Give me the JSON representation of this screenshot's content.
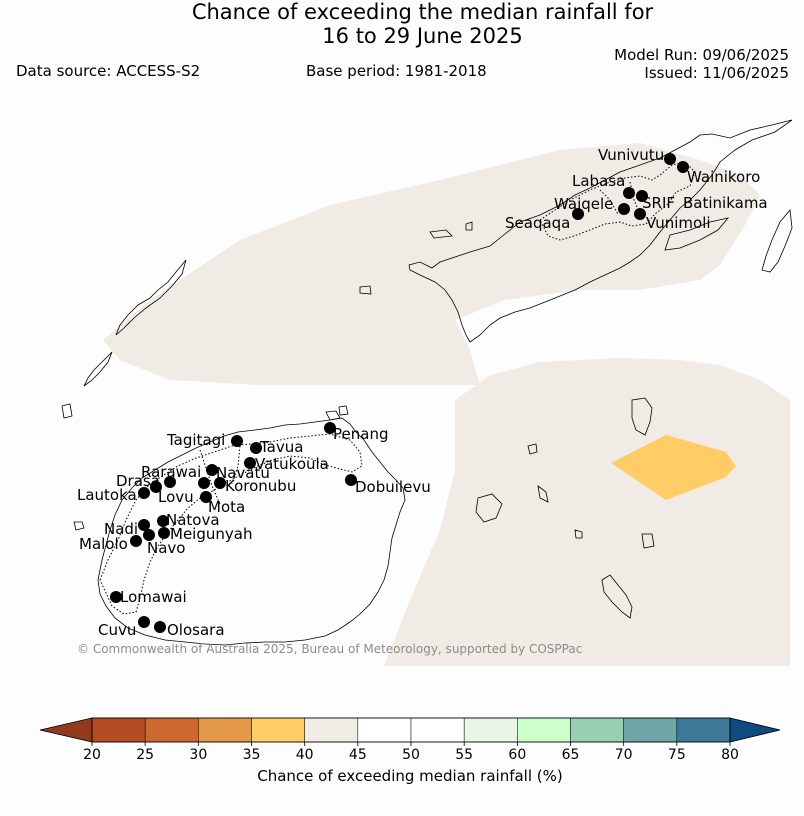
{
  "header": {
    "title_line1": "Chance of exceeding the median rainfall for",
    "title_line2": "16 to 29 June 2025",
    "data_source": "Data source: ACCESS-S2",
    "base_period": "Base period: 1981-2018",
    "model_run": "Model Run: 09/06/2025",
    "issued": "Issued: 11/06/2025"
  },
  "stations": [
    {
      "name": "Vunivutu"
    },
    {
      "name": "Wainikoro"
    },
    {
      "name": "Labasa"
    },
    {
      "name": "Waiqele"
    },
    {
      "name": "SRIF"
    },
    {
      "name": "Batinikama"
    },
    {
      "name": "Seaqaqa"
    },
    {
      "name": "Vunimoli"
    },
    {
      "name": "Penang"
    },
    {
      "name": "Tagitagi"
    },
    {
      "name": "Tavua"
    },
    {
      "name": "Vatukoula"
    },
    {
      "name": "Rarawai"
    },
    {
      "name": "Navatu"
    },
    {
      "name": "Drasa"
    },
    {
      "name": "Koronubu"
    },
    {
      "name": "Lautoka"
    },
    {
      "name": "Lovu"
    },
    {
      "name": "Dobuilevu"
    },
    {
      "name": "Mota"
    },
    {
      "name": "Natova"
    },
    {
      "name": "Nadi"
    },
    {
      "name": "Meigunyah"
    },
    {
      "name": "Malolo"
    },
    {
      "name": "Navo"
    },
    {
      "name": "Lomawai"
    },
    {
      "name": "Cuvu"
    },
    {
      "name": "Olosara"
    }
  ],
  "copyright": "© Commonwealth of Australia 2025, Bureau of Meteorology, supported by COSPPac",
  "colorbar": {
    "title": "Chance of exceeding median rainfall (%)",
    "ticks": [
      "20",
      "25",
      "30",
      "35",
      "40",
      "45",
      "50",
      "55",
      "60",
      "65",
      "70",
      "75",
      "80"
    ],
    "segment_colors": [
      "#b34b25",
      "#cd6831",
      "#e3984a",
      "#ffcc66",
      "#f0ece6",
      "#ffffff",
      "#ffffff",
      "#e9f5e7",
      "#ccffcc",
      "#99cfb4",
      "#6fa6a8",
      "#3e7898"
    ],
    "under_color": "#913a1c",
    "over_color": "#0f4b80"
  },
  "legend_colors": {
    "near_median": "#f0ebe5",
    "below_median": "#ffcc66"
  }
}
